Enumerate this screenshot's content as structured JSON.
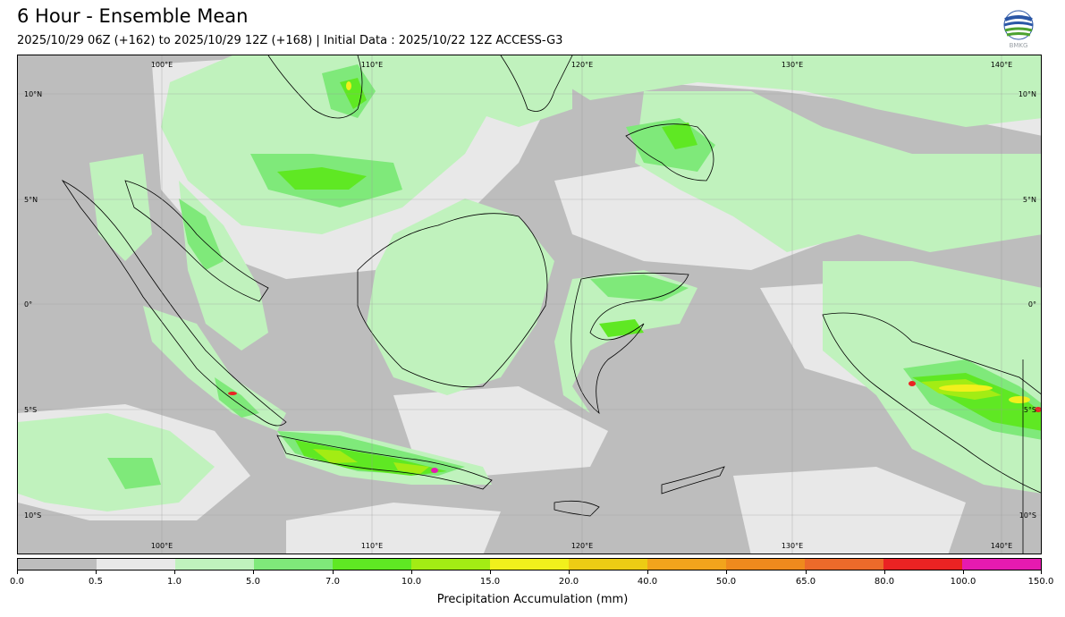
{
  "header": {
    "title": "6 Hour - Ensemble Mean",
    "subtitle": "2025/10/29 06Z (+162) to 2025/10/29 12Z (+168) | Initial Data : 2025/10/22 12Z ACCESS-G3",
    "logo_text": "BMKG",
    "logo_icon": "bmkg-logo-icon"
  },
  "map": {
    "lon_labels_top": [
      "100°E",
      "110°E",
      "120°E",
      "130°E",
      "140°E"
    ],
    "lon_labels_bottom": [
      "100°E",
      "110°E",
      "120°E",
      "130°E",
      "140°E"
    ],
    "lat_labels_left": [
      "10°N",
      "5°N",
      "0°",
      "5°S",
      "10°S"
    ],
    "lat_labels_right": [
      "10°N",
      "5°N",
      "0°",
      "5°S",
      "10°S"
    ],
    "land_color": "#bdbdbd",
    "light_rain_color": "#c0f2bd"
  },
  "colorbar": {
    "ticks": [
      "0.0",
      "0.5",
      "1.0",
      "5.0",
      "7.0",
      "10.0",
      "15.0",
      "20.0",
      "40.0",
      "50.0",
      "65.0",
      "80.0",
      "100.0",
      "150.0"
    ],
    "colors": [
      "#bdbdbd",
      "#e8e8e8",
      "#c0f2bd",
      "#7fe97a",
      "#5fe823",
      "#a3ec14",
      "#f1f01c",
      "#edcc14",
      "#f2a41c",
      "#ef8a1d",
      "#ec6a2a",
      "#ea2323",
      "#e61ab0"
    ],
    "label": "Precipitation Accumulation (mm)"
  }
}
